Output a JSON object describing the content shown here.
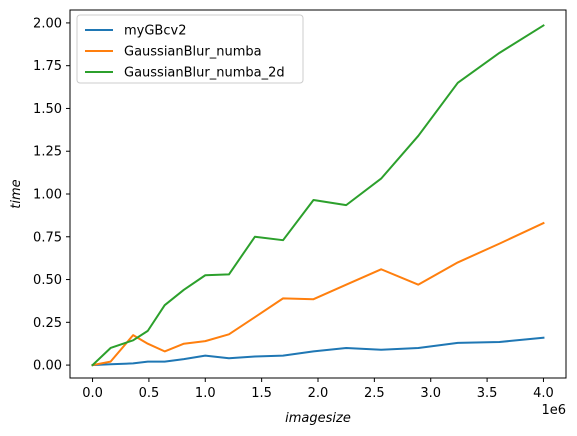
{
  "chart_data": {
    "type": "line",
    "xlabel": "imagesize",
    "ylabel": "time",
    "x_offset_label": "1e6",
    "xlim": [
      -200000,
      4200000
    ],
    "ylim": [
      -0.0755,
      2.0755
    ],
    "x_ticks": [
      0,
      500000,
      1000000,
      1500000,
      2000000,
      2500000,
      3000000,
      3500000,
      4000000
    ],
    "x_tick_labels": [
      "0.0",
      "0.5",
      "1.0",
      "1.5",
      "2.0",
      "2.5",
      "3.0",
      "3.5",
      "4.0"
    ],
    "y_ticks": [
      0,
      0.25,
      0.5,
      0.75,
      1.0,
      1.25,
      1.5,
      1.75,
      2.0
    ],
    "y_tick_labels": [
      "0.00",
      "0.25",
      "0.50",
      "0.75",
      "1.00",
      "1.25",
      "1.50",
      "1.75",
      "2.00"
    ],
    "grid": false,
    "legend_position": "top-left",
    "x": [
      0,
      160000,
      360000,
      490000,
      640000,
      810000,
      1000000,
      1210000,
      1440000,
      1690000,
      1960000,
      2250000,
      2560000,
      2890000,
      3240000,
      3610000,
      4000000
    ],
    "series": [
      {
        "name": "myGBcv2",
        "color": "#1f77b4",
        "values": [
          0.0,
          0.005,
          0.01,
          0.02,
          0.02,
          0.035,
          0.055,
          0.04,
          0.05,
          0.055,
          0.08,
          0.1,
          0.09,
          0.1,
          0.13,
          0.135,
          0.16
        ]
      },
      {
        "name": "GaussianBlur_numba",
        "color": "#ff7f0e",
        "values": [
          0.0,
          0.02,
          0.175,
          0.125,
          0.08,
          0.125,
          0.14,
          0.18,
          0.28,
          0.39,
          0.385,
          0.47,
          0.56,
          0.47,
          0.6,
          0.71,
          0.83
        ]
      },
      {
        "name": "GaussianBlur_numba_2d",
        "color": "#2ca02c",
        "values": [
          0.0,
          0.1,
          0.145,
          0.2,
          0.35,
          0.44,
          0.525,
          0.53,
          0.75,
          0.73,
          0.965,
          0.935,
          1.09,
          1.34,
          1.65,
          1.825,
          1.985
        ]
      }
    ]
  }
}
